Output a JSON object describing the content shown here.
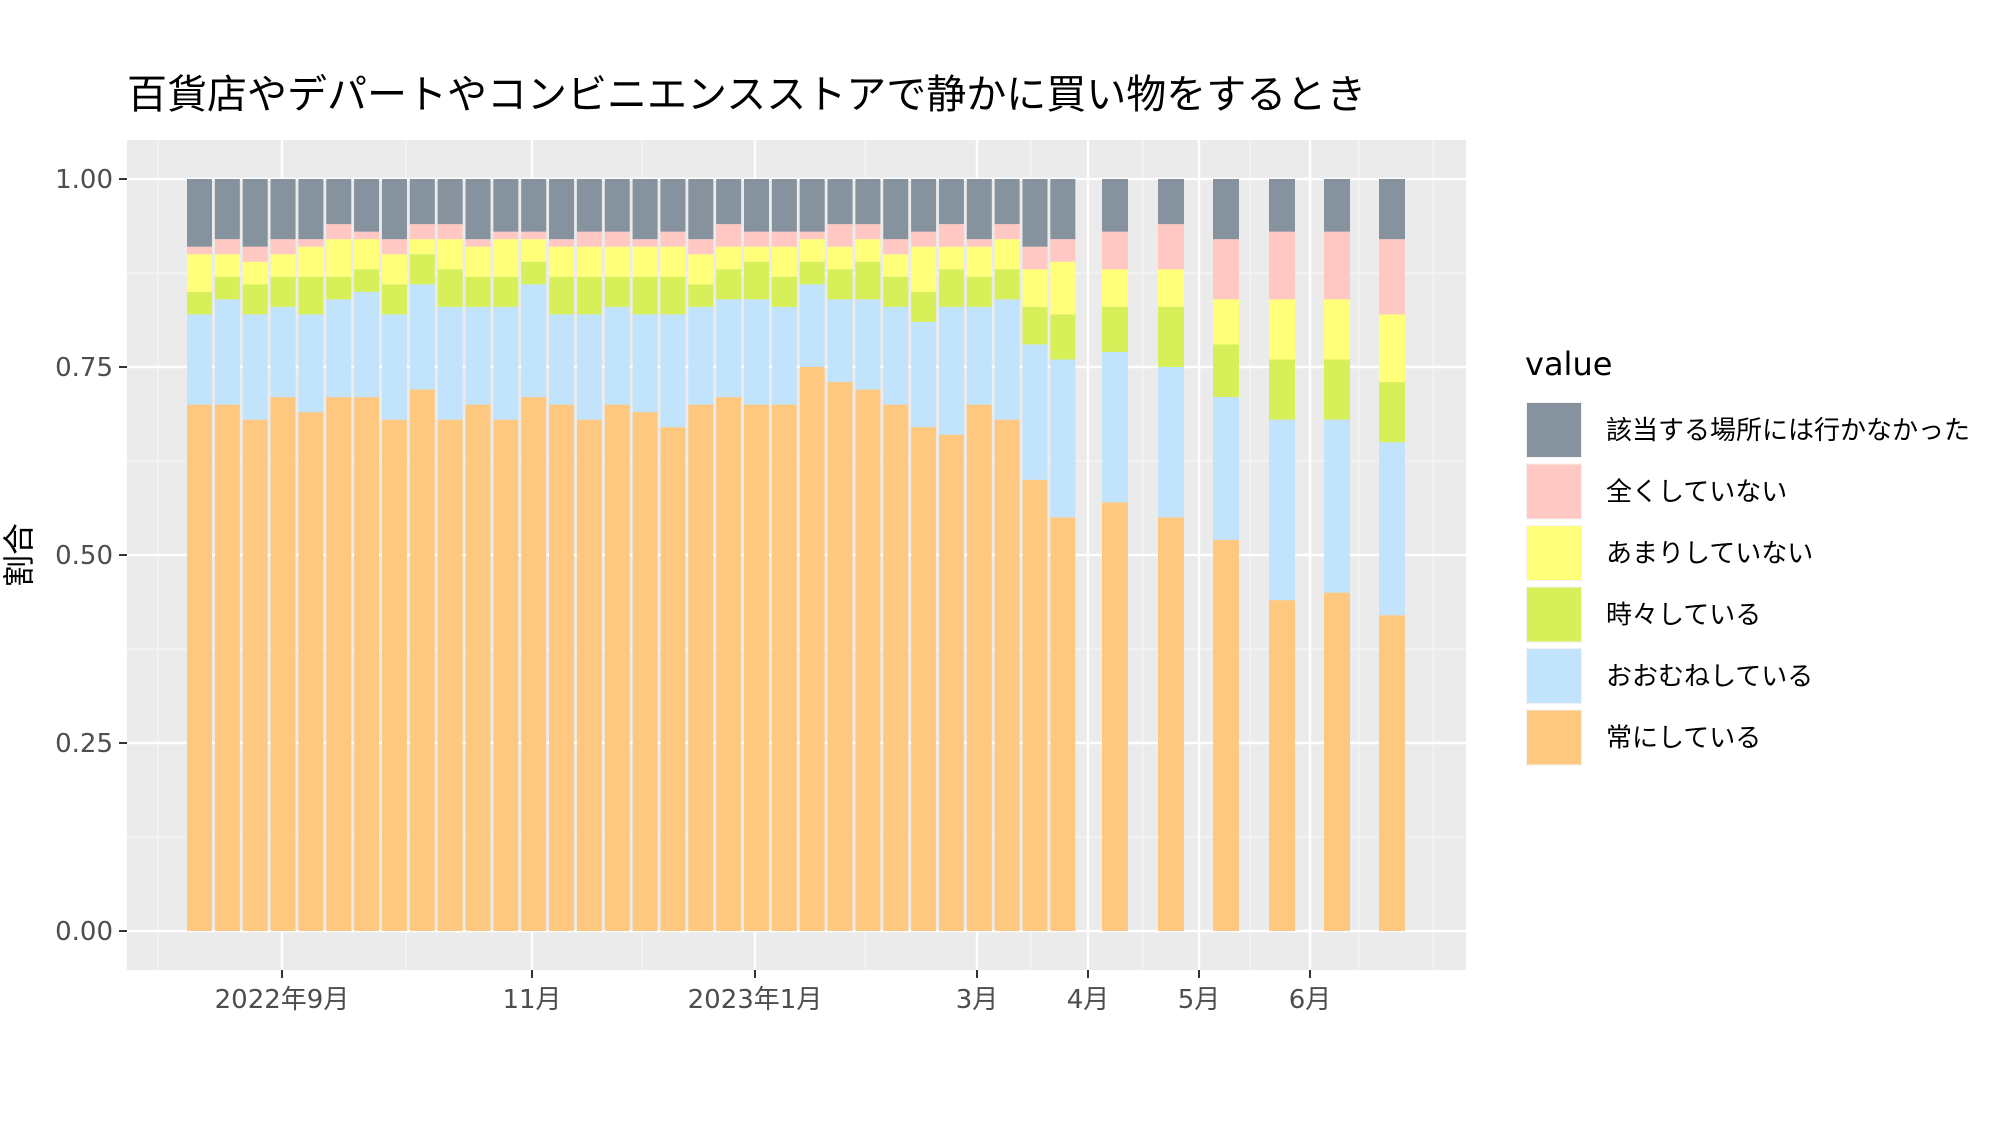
{
  "chart_data": {
    "type": "bar",
    "stacked": true,
    "title": "百貨店やデパートやコンビニエンスストアで静かに買い物をするとき",
    "xlabel": "",
    "ylabel": "割合",
    "ylim": [
      0,
      1
    ],
    "y_ticks": [
      "0.00",
      "0.25",
      "0.50",
      "0.75",
      "1.00"
    ],
    "x_ticks": [
      "2022年9月",
      "11月",
      "2023年1月",
      "3月",
      "4月",
      "5月",
      "6月"
    ],
    "grid": true,
    "legend": {
      "title": "value",
      "position": "right",
      "entries": [
        {
          "label": "該当する場所には行かなかった",
          "color": "#87929f"
        },
        {
          "label": "全くしていない",
          "color": "#ffc8c2"
        },
        {
          "label": "あまりしていない",
          "color": "#ffff7a"
        },
        {
          "label": "時々している",
          "color": "#d7f05a"
        },
        {
          "label": "おおむねしている",
          "color": "#c2e3fc"
        },
        {
          "label": "常にしている",
          "color": "#ffc880"
        }
      ]
    },
    "stack_order_bottom_to_top": [
      "常にしている",
      "おおむねしている",
      "時々している",
      "あまりしていない",
      "全くしていない",
      "該当する場所には行かなかった"
    ],
    "cumulative_tops": [
      [
        0.7,
        0.82,
        0.85,
        0.9,
        0.91
      ],
      [
        0.7,
        0.84,
        0.87,
        0.9,
        0.92
      ],
      [
        0.68,
        0.82,
        0.86,
        0.89,
        0.91
      ],
      [
        0.71,
        0.83,
        0.87,
        0.9,
        0.92
      ],
      [
        0.69,
        0.82,
        0.87,
        0.91,
        0.92
      ],
      [
        0.71,
        0.84,
        0.87,
        0.92,
        0.94
      ],
      [
        0.71,
        0.85,
        0.88,
        0.92,
        0.93
      ],
      [
        0.68,
        0.82,
        0.86,
        0.9,
        0.92
      ],
      [
        0.72,
        0.86,
        0.9,
        0.92,
        0.94
      ],
      [
        0.68,
        0.83,
        0.88,
        0.92,
        0.94
      ],
      [
        0.7,
        0.83,
        0.87,
        0.91,
        0.92
      ],
      [
        0.68,
        0.83,
        0.87,
        0.92,
        0.93
      ],
      [
        0.71,
        0.86,
        0.89,
        0.92,
        0.93
      ],
      [
        0.7,
        0.82,
        0.87,
        0.91,
        0.92
      ],
      [
        0.68,
        0.82,
        0.87,
        0.91,
        0.93
      ],
      [
        0.7,
        0.83,
        0.87,
        0.91,
        0.93
      ],
      [
        0.69,
        0.82,
        0.87,
        0.91,
        0.92
      ],
      [
        0.67,
        0.82,
        0.87,
        0.91,
        0.93
      ],
      [
        0.7,
        0.83,
        0.86,
        0.9,
        0.92
      ],
      [
        0.71,
        0.84,
        0.88,
        0.91,
        0.94
      ],
      [
        0.7,
        0.84,
        0.89,
        0.91,
        0.93
      ],
      [
        0.7,
        0.83,
        0.87,
        0.91,
        0.93
      ],
      [
        0.75,
        0.86,
        0.89,
        0.92,
        0.93
      ],
      [
        0.73,
        0.84,
        0.88,
        0.91,
        0.94
      ],
      [
        0.72,
        0.84,
        0.89,
        0.92,
        0.94
      ],
      [
        0.7,
        0.83,
        0.87,
        0.9,
        0.92
      ],
      [
        0.67,
        0.81,
        0.85,
        0.91,
        0.93
      ],
      [
        0.66,
        0.83,
        0.88,
        0.91,
        0.94
      ],
      [
        0.7,
        0.83,
        0.87,
        0.91,
        0.92
      ],
      [
        0.68,
        0.84,
        0.88,
        0.92,
        0.94
      ],
      [
        0.6,
        0.78,
        0.83,
        0.88,
        0.91
      ],
      [
        0.55,
        0.76,
        0.82,
        0.89,
        0.92
      ],
      [
        0.57,
        0.77,
        0.83,
        0.88,
        0.93
      ],
      [
        0.55,
        0.75,
        0.83,
        0.88,
        0.94
      ],
      [
        0.52,
        0.71,
        0.78,
        0.84,
        0.92
      ],
      [
        0.44,
        0.68,
        0.76,
        0.84,
        0.93
      ],
      [
        0.45,
        0.68,
        0.76,
        0.84,
        0.93
      ],
      [
        0.42,
        0.65,
        0.73,
        0.82,
        0.92
      ]
    ]
  }
}
